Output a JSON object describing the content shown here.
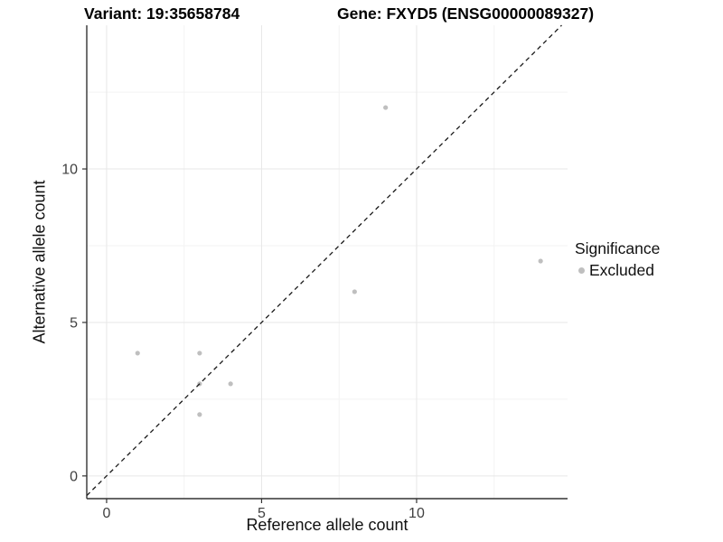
{
  "chart_data": {
    "type": "scatter",
    "title_left": "Variant: 19:35658784",
    "title_right": "Gene: FXYD5 (ENSG00000089327)",
    "xlabel": "Reference allele count",
    "ylabel": "Alternative allele count",
    "xlim": [
      -0.64,
      14.87
    ],
    "ylim": [
      -0.74,
      14.68
    ],
    "x_major_ticks": [
      0,
      5,
      10
    ],
    "y_major_ticks": [
      0,
      5,
      10
    ],
    "x_minor_ticks": [
      2.5,
      7.5,
      12.5
    ],
    "y_minor_ticks": [
      2.5,
      7.5,
      12.5
    ],
    "points": [
      {
        "x": 1,
        "y": 4
      },
      {
        "x": 3,
        "y": 4
      },
      {
        "x": 3,
        "y": 3
      },
      {
        "x": 4,
        "y": 3
      },
      {
        "x": 3,
        "y": 2
      },
      {
        "x": 8,
        "y": 6
      },
      {
        "x": 9,
        "y": 12
      },
      {
        "x": 14,
        "y": 7
      }
    ],
    "identity_line": {
      "type": "y=x",
      "style": "dashed",
      "color": "#1a1a1a"
    },
    "point_color": "#bfbfbf",
    "point_radius": 2.6,
    "grid": {
      "shown": true,
      "major_color": "#e7e7e7",
      "minor_color": "#f3f3f3"
    },
    "axis_color": "#333333",
    "tick_label_color": "#404040",
    "legend": {
      "position": "right",
      "title": "Significance",
      "items": [
        {
          "label": "Excluded",
          "color": "#bfbfbf"
        }
      ]
    }
  }
}
